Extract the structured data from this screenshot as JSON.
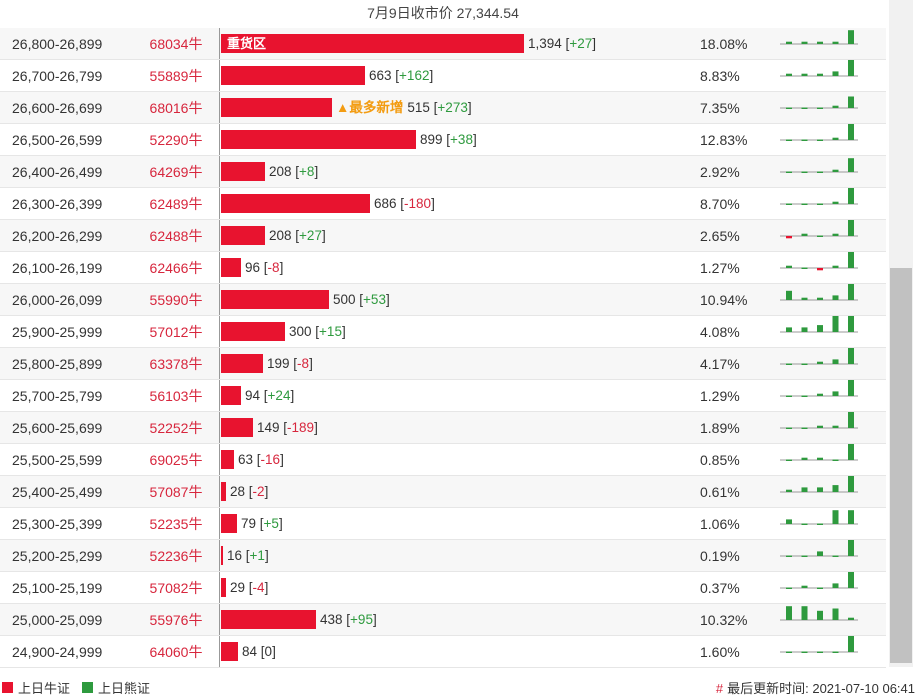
{
  "header": {
    "text": "7月9日收市价 27,344.54"
  },
  "rows": [
    {
      "range": "26,800-26,899",
      "code": "68034牛",
      "count": "1,394",
      "delta": "+27",
      "pct": "18.08%",
      "barw": 303,
      "tag": "重货区",
      "tagInBar": true,
      "spark": [
        1,
        1,
        1,
        1,
        6,
        -1
      ]
    },
    {
      "range": "26,700-26,799",
      "code": "55889牛",
      "count": "663",
      "delta": "+162",
      "pct": "8.83%",
      "barw": 144,
      "spark": [
        1,
        1,
        1,
        2,
        7,
        3
      ]
    },
    {
      "range": "26,600-26,699",
      "code": "68016牛",
      "count": "515",
      "delta": "+273",
      "pct": "7.35%",
      "barw": 111,
      "tag": "▲最多新增",
      "spark": [
        0,
        0,
        0,
        1,
        5,
        6
      ]
    },
    {
      "range": "26,500-26,599",
      "code": "52290牛",
      "count": "899",
      "delta": "+38",
      "pct": "12.83%",
      "barw": 195,
      "spark": [
        0,
        0,
        0,
        1,
        7,
        2
      ]
    },
    {
      "range": "26,400-26,499",
      "code": "64269牛",
      "count": "208",
      "delta": "+8",
      "pct": "2.92%",
      "barw": 44,
      "spark": [
        0,
        0,
        0,
        1,
        6,
        1
      ]
    },
    {
      "range": "26,300-26,399",
      "code": "62489牛",
      "count": "686",
      "delta": "-180",
      "pct": "8.70%",
      "barw": 149,
      "spark": [
        0,
        0,
        0,
        1,
        7,
        -2
      ]
    },
    {
      "range": "26,200-26,299",
      "code": "62488牛",
      "count": "208",
      "delta": "+27",
      "pct": "2.65%",
      "barw": 44,
      "spark": [
        -1,
        1,
        0,
        1,
        7,
        2
      ]
    },
    {
      "range": "26,100-26,199",
      "code": "62466牛",
      "count": "96",
      "delta": "-8",
      "pct": "1.27%",
      "barw": 20,
      "spark": [
        1,
        0,
        -1,
        1,
        7,
        -1
      ]
    },
    {
      "range": "26,000-26,099",
      "code": "55990牛",
      "count": "500",
      "delta": "+53",
      "pct": "10.94%",
      "barw": 108,
      "spark": [
        4,
        1,
        1,
        2,
        7,
        4
      ]
    },
    {
      "range": "25,900-25,999",
      "code": "57012牛",
      "count": "300",
      "delta": "+15",
      "pct": "4.08%",
      "barw": 64,
      "spark": [
        2,
        2,
        3,
        7,
        7,
        4
      ]
    },
    {
      "range": "25,800-25,899",
      "code": "63378牛",
      "count": "199",
      "delta": "-8",
      "pct": "4.17%",
      "barw": 42,
      "spark": [
        0,
        0,
        1,
        2,
        7,
        -1
      ]
    },
    {
      "range": "25,700-25,799",
      "code": "56103牛",
      "count": "94",
      "delta": "+24",
      "pct": "1.29%",
      "barw": 20,
      "spark": [
        0,
        0,
        1,
        2,
        7,
        7
      ]
    },
    {
      "range": "25,600-25,699",
      "code": "52252牛",
      "count": "149",
      "delta": "-189",
      "pct": "1.89%",
      "barw": 32,
      "spark": [
        0,
        0,
        1,
        1,
        7,
        -5
      ]
    },
    {
      "range": "25,500-25,599",
      "code": "69025牛",
      "count": "63",
      "delta": "-16",
      "pct": "0.85%",
      "barw": 13,
      "spark": [
        0,
        1,
        1,
        0,
        7,
        -4
      ]
    },
    {
      "range": "25,400-25,499",
      "code": "57087牛",
      "count": "28",
      "delta": "-2",
      "pct": "0.61%",
      "barw": 5,
      "spark": [
        1,
        2,
        2,
        3,
        7,
        -1
      ]
    },
    {
      "range": "25,300-25,399",
      "code": "52235牛",
      "count": "79",
      "delta": "+5",
      "pct": "1.06%",
      "barw": 16,
      "spark": [
        2,
        0,
        0,
        6,
        6,
        6
      ]
    },
    {
      "range": "25,200-25,299",
      "code": "52236牛",
      "count": "16",
      "delta": "+1",
      "pct": "0.19%",
      "barw": 2,
      "spark": [
        0,
        0,
        2,
        0,
        7,
        0
      ]
    },
    {
      "range": "25,100-25,199",
      "code": "57082牛",
      "count": "29",
      "delta": "-4",
      "pct": "0.37%",
      "barw": 5,
      "spark": [
        0,
        1,
        0,
        2,
        7,
        -1
      ]
    },
    {
      "range": "25,000-25,099",
      "code": "55976牛",
      "count": "438",
      "delta": "+95",
      "pct": "10.32%",
      "barw": 95,
      "spark": [
        6,
        6,
        4,
        5,
        1,
        7
      ]
    },
    {
      "range": "24,900-24,999",
      "code": "64060牛",
      "count": "84",
      "delta": "0",
      "pct": "1.60%",
      "barw": 17,
      "spark": [
        0,
        0,
        0,
        0,
        7,
        0
      ]
    }
  ],
  "colors": {
    "bull": "#e8132f",
    "bear": "#2e9a3e"
  },
  "footer": {
    "legend_bull": "上日牛证",
    "legend_bear": "上日熊证",
    "update_label": "最后更新时间: 2021-07-10 06:41"
  }
}
